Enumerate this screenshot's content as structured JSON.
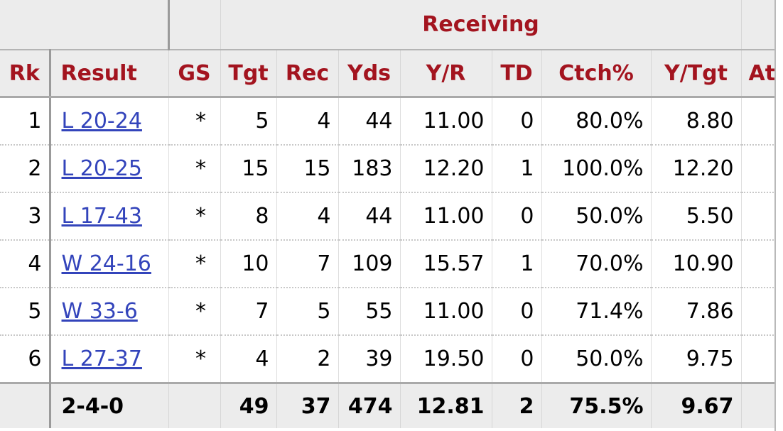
{
  "over_header": {
    "receiving": "Receiving"
  },
  "columns": {
    "rk": "Rk",
    "result": "Result",
    "gs": "GS",
    "tgt": "Tgt",
    "rec": "Rec",
    "yds": "Yds",
    "yr": "Y/R",
    "td": "TD",
    "ctch": "Ctch%",
    "ytgt": "Y/Tgt",
    "att": "At"
  },
  "rows": [
    {
      "rk": "1",
      "result": "L 20-24",
      "gs": "*",
      "tgt": "5",
      "rec": "4",
      "yds": "44",
      "yr": "11.00",
      "td": "0",
      "ctch": "80.0%",
      "ytgt": "8.80"
    },
    {
      "rk": "2",
      "result": "L 20-25",
      "gs": "*",
      "tgt": "15",
      "rec": "15",
      "yds": "183",
      "yr": "12.20",
      "td": "1",
      "ctch": "100.0%",
      "ytgt": "12.20"
    },
    {
      "rk": "3",
      "result": "L 17-43",
      "gs": "*",
      "tgt": "8",
      "rec": "4",
      "yds": "44",
      "yr": "11.00",
      "td": "0",
      "ctch": "50.0%",
      "ytgt": "5.50"
    },
    {
      "rk": "4",
      "result": "W 24-16",
      "gs": "*",
      "tgt": "10",
      "rec": "7",
      "yds": "109",
      "yr": "15.57",
      "td": "1",
      "ctch": "70.0%",
      "ytgt": "10.90"
    },
    {
      "rk": "5",
      "result": "W 33-6",
      "gs": "*",
      "tgt": "7",
      "rec": "5",
      "yds": "55",
      "yr": "11.00",
      "td": "0",
      "ctch": "71.4%",
      "ytgt": "7.86"
    },
    {
      "rk": "6",
      "result": "L 27-37",
      "gs": "*",
      "tgt": "4",
      "rec": "2",
      "yds": "39",
      "yr": "19.50",
      "td": "0",
      "ctch": "50.0%",
      "ytgt": "9.75"
    }
  ],
  "totals": {
    "rk": "",
    "result": "2-4-0",
    "gs": "",
    "tgt": "49",
    "rec": "37",
    "yds": "474",
    "yr": "12.81",
    "td": "2",
    "ctch": "75.5%",
    "ytgt": "9.67"
  },
  "colors": {
    "header_text": "#a3141f",
    "link": "#3344bb",
    "header_bg": "#ececec"
  }
}
